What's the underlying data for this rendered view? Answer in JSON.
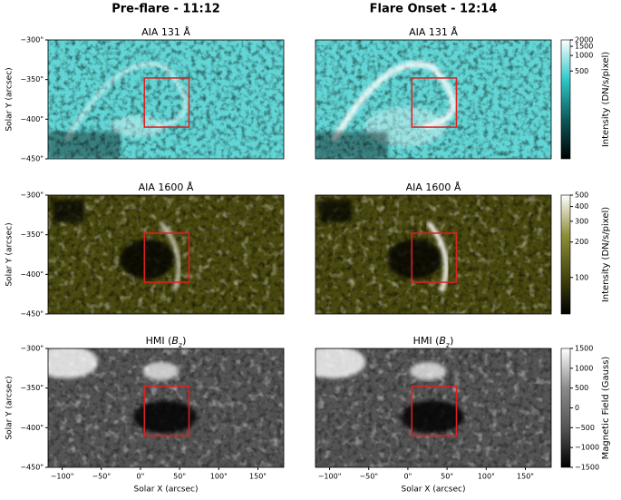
{
  "column_titles": [
    "Pre-flare - 11:12",
    "Flare Onset - 12:14"
  ],
  "chart_data": [
    {
      "type": "image",
      "title": "AIA 131 Å",
      "xlim": [
        -118,
        183
      ],
      "ylim": [
        -450,
        -300
      ],
      "ylabel": "Solar Y (arcsec)",
      "yticks": [
        {
          "value": -300,
          "label": "−300\""
        },
        {
          "value": -350,
          "label": "−350\""
        },
        {
          "value": -400,
          "label": "−400\""
        },
        {
          "value": -450,
          "label": "−450\""
        }
      ],
      "box": {
        "x": [
          5,
          62
        ],
        "y": [
          -410,
          -348
        ],
        "color": "#e02020"
      },
      "colormap": [
        "#000000",
        "#0b5b5b",
        "#2ec8c8",
        "#ffffff"
      ]
    },
    {
      "type": "image",
      "title": "AIA 131 Å",
      "xlim": [
        -118,
        183
      ],
      "ylim": [
        -450,
        -300
      ],
      "box": {
        "x": [
          5,
          62
        ],
        "y": [
          -410,
          -348
        ],
        "color": "#e02020"
      },
      "colormap": [
        "#000000",
        "#0b5b5b",
        "#2ec8c8",
        "#ffffff"
      ],
      "colorbar": {
        "label": "Intensity (DN/s/pixel)",
        "scale": "log",
        "clim": [
          10,
          2000
        ],
        "ticks": [
          2000,
          1500,
          1000,
          500
        ]
      }
    },
    {
      "type": "image",
      "title": "AIA 1600 Å",
      "xlim": [
        -118,
        183
      ],
      "ylim": [
        -450,
        -300
      ],
      "ylabel": "Solar Y (arcsec)",
      "yticks": [
        {
          "value": -300,
          "label": "−300\""
        },
        {
          "value": -350,
          "label": "−350\""
        },
        {
          "value": -400,
          "label": "−400\""
        },
        {
          "value": -450,
          "label": "−450\""
        }
      ],
      "box": {
        "x": [
          5,
          62
        ],
        "y": [
          -410,
          -348
        ],
        "color": "#e02020"
      },
      "colormap": [
        "#000000",
        "#4a4a10",
        "#8f8f3a",
        "#ffffff"
      ]
    },
    {
      "type": "image",
      "title": "AIA 1600 Å",
      "xlim": [
        -118,
        183
      ],
      "ylim": [
        -450,
        -300
      ],
      "box": {
        "x": [
          5,
          62
        ],
        "y": [
          -410,
          -348
        ],
        "color": "#e02020"
      },
      "colormap": [
        "#000000",
        "#4a4a10",
        "#8f8f3a",
        "#ffffff"
      ],
      "colorbar": {
        "label": "Intensity (DN/s/pixel)",
        "scale": "log",
        "clim": [
          49,
          500
        ],
        "ticks": [
          500,
          400,
          300,
          200,
          100
        ]
      }
    },
    {
      "type": "image",
      "title": [
        "HMI (",
        "B",
        "z",
        ")"
      ],
      "xlim": [
        -118,
        183
      ],
      "ylim": [
        -450,
        -300
      ],
      "ylabel": "Solar Y (arcsec)",
      "xlabel": "Solar X (arcsec)",
      "yticks": [
        {
          "value": -300,
          "label": "−300\""
        },
        {
          "value": -350,
          "label": "−350\""
        },
        {
          "value": -400,
          "label": "−400\""
        },
        {
          "value": -450,
          "label": "−450\""
        }
      ],
      "xticks": [
        {
          "value": -100,
          "label": "−100\""
        },
        {
          "value": -50,
          "label": "−50\""
        },
        {
          "value": 0,
          "label": "0\""
        },
        {
          "value": 50,
          "label": "50\""
        },
        {
          "value": 100,
          "label": "100\""
        },
        {
          "value": 150,
          "label": "150\""
        }
      ],
      "box": {
        "x": [
          5,
          62
        ],
        "y": [
          -410,
          -348
        ],
        "color": "#e02020"
      },
      "colormap": [
        "#000000",
        "#555555",
        "#8a8a8a",
        "#ffffff"
      ]
    },
    {
      "type": "image",
      "title": [
        "HMI (",
        "B",
        "z",
        ")"
      ],
      "xlim": [
        -118,
        183
      ],
      "ylim": [
        -450,
        -300
      ],
      "xlabel": "Solar X (arcsec)",
      "xticks": [
        {
          "value": -100,
          "label": "−100\""
        },
        {
          "value": -50,
          "label": "−50\""
        },
        {
          "value": 0,
          "label": "0\""
        },
        {
          "value": 50,
          "label": "50\""
        },
        {
          "value": 100,
          "label": "100\""
        },
        {
          "value": 150,
          "label": "150\""
        }
      ],
      "box": {
        "x": [
          5,
          62
        ],
        "y": [
          -410,
          -348
        ],
        "color": "#e02020"
      },
      "colormap": [
        "#000000",
        "#555555",
        "#8a8a8a",
        "#ffffff"
      ],
      "colorbar": {
        "label": "Magnetic Field (Gauss)",
        "scale": "linear",
        "clim": [
          -1500,
          1500
        ],
        "ticks": [
          1500,
          1000,
          500,
          0,
          {
            "value": -500,
            "label": "−500"
          },
          {
            "value": -1000,
            "label": "−1000"
          },
          {
            "value": -1500,
            "label": "−1500"
          }
        ]
      }
    }
  ]
}
